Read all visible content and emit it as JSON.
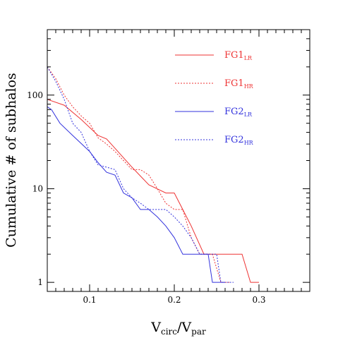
{
  "chart_data": {
    "type": "line",
    "title": "",
    "xlabel": "V<sub>circ</sub>/V<sub>par</sub>",
    "xlabel_parts": {
      "main": "V",
      "sub1": "circ",
      "slash": "/V",
      "sub2": "par"
    },
    "ylabel": "Cumulative # of subhalos",
    "xlim": [
      0.05,
      0.36
    ],
    "ylim": [
      0.8,
      500
    ],
    "y_scale": "log",
    "grid": false,
    "legend_position": "top-right",
    "x_ticks": [
      {
        "value": 0.1,
        "label": "0.1"
      },
      {
        "value": 0.2,
        "label": "0.2"
      },
      {
        "value": 0.3,
        "label": "0.3"
      }
    ],
    "y_ticks": [
      {
        "value": 1,
        "label": "1"
      },
      {
        "value": 10,
        "label": "10"
      },
      {
        "value": 100,
        "label": "100"
      }
    ],
    "series": [
      {
        "name": "FG1",
        "name_sub": "LR",
        "color": "#ee3333",
        "dash": "solid",
        "x": [
          0.05,
          0.07,
          0.09,
          0.11,
          0.12,
          0.13,
          0.15,
          0.17,
          0.19,
          0.2,
          0.22,
          0.235,
          0.245,
          0.28,
          0.29,
          0.3
        ],
        "y": [
          90,
          78,
          55,
          37,
          34,
          27,
          17,
          11,
          9,
          9,
          4,
          2,
          2,
          2,
          1,
          1
        ]
      },
      {
        "name": "FG1",
        "name_sub": "HR",
        "color": "#ee3333",
        "dash": "dotted",
        "x": [
          0.05,
          0.06,
          0.07,
          0.08,
          0.09,
          0.1,
          0.11,
          0.12,
          0.13,
          0.14,
          0.15,
          0.16,
          0.17,
          0.18,
          0.19,
          0.2,
          0.21,
          0.22,
          0.23,
          0.245,
          0.255,
          0.265
        ],
        "y": [
          200,
          150,
          100,
          75,
          60,
          50,
          35,
          30,
          25,
          20,
          16,
          16,
          14,
          10,
          7,
          6,
          6,
          3,
          2,
          2,
          1,
          1
        ]
      },
      {
        "name": "FG2",
        "name_sub": "LR",
        "color": "#3333dd",
        "dash": "solid",
        "x": [
          0.05,
          0.055,
          0.065,
          0.08,
          0.1,
          0.11,
          0.12,
          0.13,
          0.14,
          0.15,
          0.16,
          0.17,
          0.18,
          0.19,
          0.2,
          0.21,
          0.225,
          0.24,
          0.245,
          0.26
        ],
        "y": [
          75,
          70,
          50,
          37,
          25,
          19,
          15,
          14,
          9,
          8,
          6,
          6,
          5,
          4,
          3,
          2,
          2,
          2,
          1,
          1
        ]
      },
      {
        "name": "FG2",
        "name_sub": "HR",
        "color": "#3333dd",
        "dash": "dotted",
        "x": [
          0.05,
          0.06,
          0.07,
          0.08,
          0.09,
          0.1,
          0.11,
          0.12,
          0.13,
          0.14,
          0.15,
          0.16,
          0.17,
          0.18,
          0.19,
          0.2,
          0.21,
          0.22,
          0.23,
          0.24,
          0.25,
          0.255,
          0.27
        ],
        "y": [
          200,
          140,
          90,
          50,
          40,
          25,
          18,
          17,
          16,
          10,
          8,
          7,
          6,
          6,
          6,
          5,
          4,
          3,
          2,
          2,
          2,
          1,
          1
        ]
      }
    ]
  }
}
